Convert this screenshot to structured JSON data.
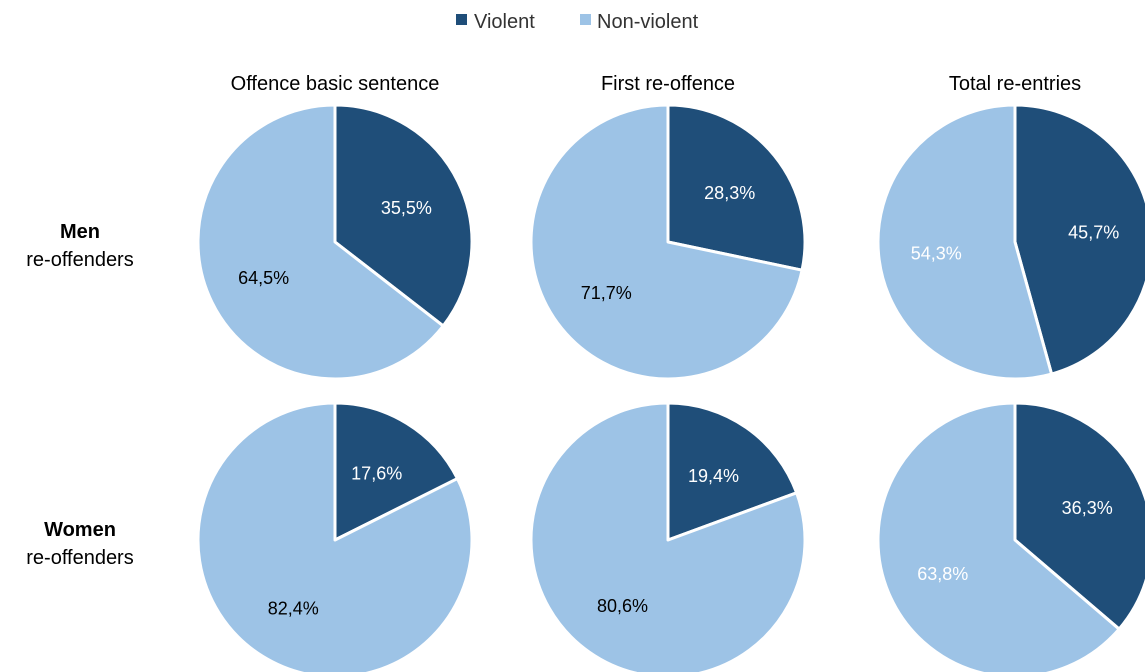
{
  "chart_data": {
    "type": "pie",
    "legend": {
      "placement": "top-center",
      "items": [
        {
          "label": "Violent",
          "color": "#1f4e79"
        },
        {
          "label": "Non-violent",
          "color": "#9dc3e6"
        }
      ]
    },
    "columns": [
      "Offence basic sentence",
      "First re-offence",
      "Total re-entries"
    ],
    "rows": [
      {
        "bold": "Men",
        "sub": "re-offenders"
      },
      {
        "bold": "Women",
        "sub": "re-offenders"
      }
    ],
    "pies": [
      {
        "row": 0,
        "col": 0,
        "slices": [
          {
            "category": "Violent",
            "value": 35.5,
            "label": "35,5%",
            "color": "#1f4e79",
            "label_color": "#ffffff"
          },
          {
            "category": "Non-violent",
            "value": 64.5,
            "label": "64,5%",
            "color": "#9dc3e6",
            "label_color": "#000000"
          }
        ]
      },
      {
        "row": 0,
        "col": 1,
        "slices": [
          {
            "category": "Violent",
            "value": 28.3,
            "label": "28,3%",
            "color": "#1f4e79",
            "label_color": "#ffffff"
          },
          {
            "category": "Non-violent",
            "value": 71.7,
            "label": "71,7%",
            "color": "#9dc3e6",
            "label_color": "#000000"
          }
        ]
      },
      {
        "row": 0,
        "col": 2,
        "slices": [
          {
            "category": "Violent",
            "value": 45.7,
            "label": "45,7%",
            "color": "#1f4e79",
            "label_color": "#ffffff"
          },
          {
            "category": "Non-violent",
            "value": 54.3,
            "label": "54,3%",
            "color": "#9dc3e6",
            "label_color": "#ffffff"
          }
        ]
      },
      {
        "row": 1,
        "col": 0,
        "slices": [
          {
            "category": "Violent",
            "value": 17.6,
            "label": "17,6%",
            "color": "#1f4e79",
            "label_color": "#ffffff"
          },
          {
            "category": "Non-violent",
            "value": 82.4,
            "label": "82,4%",
            "color": "#9dc3e6",
            "label_color": "#000000"
          }
        ]
      },
      {
        "row": 1,
        "col": 1,
        "slices": [
          {
            "category": "Violent",
            "value": 19.4,
            "label": "19,4%",
            "color": "#1f4e79",
            "label_color": "#ffffff"
          },
          {
            "category": "Non-violent",
            "value": 80.6,
            "label": "80,6%",
            "color": "#9dc3e6",
            "label_color": "#000000"
          }
        ]
      },
      {
        "row": 1,
        "col": 2,
        "slices": [
          {
            "category": "Violent",
            "value": 36.3,
            "label": "36,3%",
            "color": "#1f4e79",
            "label_color": "#ffffff"
          },
          {
            "category": "Non-violent",
            "value": 63.8,
            "label": "63,8%",
            "color": "#9dc3e6",
            "label_color": "#ffffff"
          }
        ]
      }
    ]
  }
}
